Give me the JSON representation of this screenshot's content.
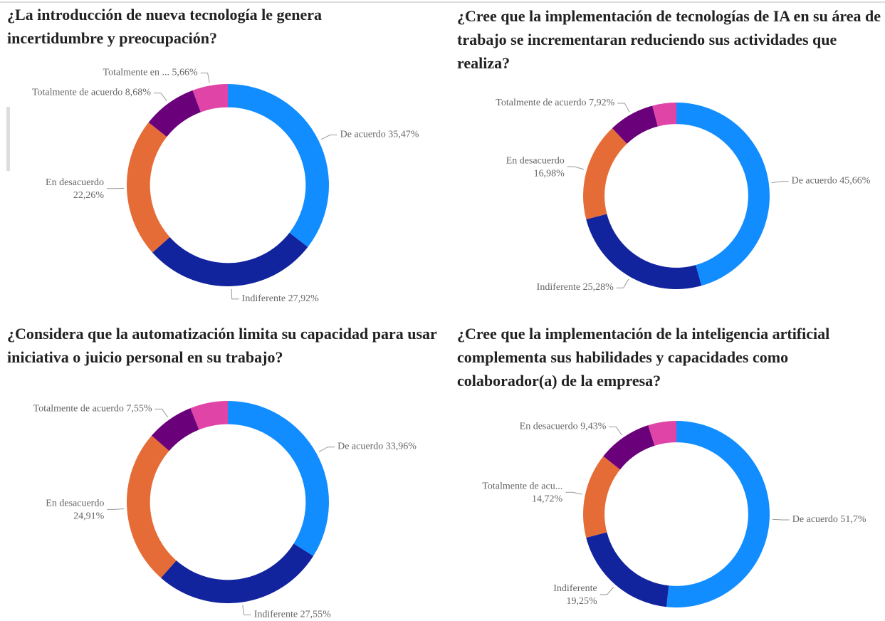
{
  "chart_data": [
    {
      "type": "pie",
      "title": "¿La introducción de nueva tecnología le genera incertidumbre y preocupación?",
      "categories": [
        "De acuerdo",
        "Indiferente",
        "En desacuerdo",
        "Totalmente de acuerdo",
        "Totalmente en ..."
      ],
      "values": [
        35.47,
        27.92,
        22.26,
        8.68,
        5.66
      ],
      "value_labels": [
        "35,47%",
        "27,92%",
        "22,26%",
        "8,68%",
        "5,66%"
      ],
      "colors": [
        "#118DFF",
        "#12239E",
        "#E66C37",
        "#6B007B",
        "#E044A7"
      ]
    },
    {
      "type": "pie",
      "title": "¿Cree que la implementación de tecnologías de IA en su área de trabajo se incrementaran reduciendo sus actividades que realiza?",
      "categories": [
        "De acuerdo",
        "Indiferente",
        "En desacuerdo",
        "Totalmente de acuerdo",
        null
      ],
      "values": [
        45.66,
        25.28,
        16.98,
        7.92,
        4.16
      ],
      "value_labels": [
        "45,66%",
        "25,28%",
        "16,98%",
        "7,92%",
        null
      ],
      "colors": [
        "#118DFF",
        "#12239E",
        "#E66C37",
        "#6B007B",
        "#E044A7"
      ]
    },
    {
      "type": "pie",
      "title": "¿Considera que la automatización limita su capacidad para usar iniciativa o juicio personal en su trabajo?",
      "categories": [
        "De acuerdo",
        "Indiferente",
        "En desacuerdo",
        "Totalmente de acuerdo",
        null
      ],
      "values": [
        33.96,
        27.55,
        24.91,
        7.55,
        6.03
      ],
      "value_labels": [
        "33,96%",
        "27,55%",
        "24,91%",
        "7,55%",
        null
      ],
      "colors": [
        "#118DFF",
        "#12239E",
        "#E66C37",
        "#6B007B",
        "#E044A7"
      ]
    },
    {
      "type": "pie",
      "title": "¿Cree que la implementación de la inteligencia artificial complementa sus habilidades y capacidades como colaborador(a) de la empresa?",
      "categories": [
        "De acuerdo",
        "Indiferente",
        "Totalmente de acu...",
        "En desacuerdo",
        null
      ],
      "values": [
        51.7,
        19.25,
        14.72,
        9.43,
        4.9
      ],
      "value_labels": [
        "51,7%",
        "19,25%",
        "14,72%",
        "9,43%",
        null
      ],
      "colors": [
        "#118DFF",
        "#12239E",
        "#E66C37",
        "#6B007B",
        "#E044A7"
      ]
    }
  ]
}
